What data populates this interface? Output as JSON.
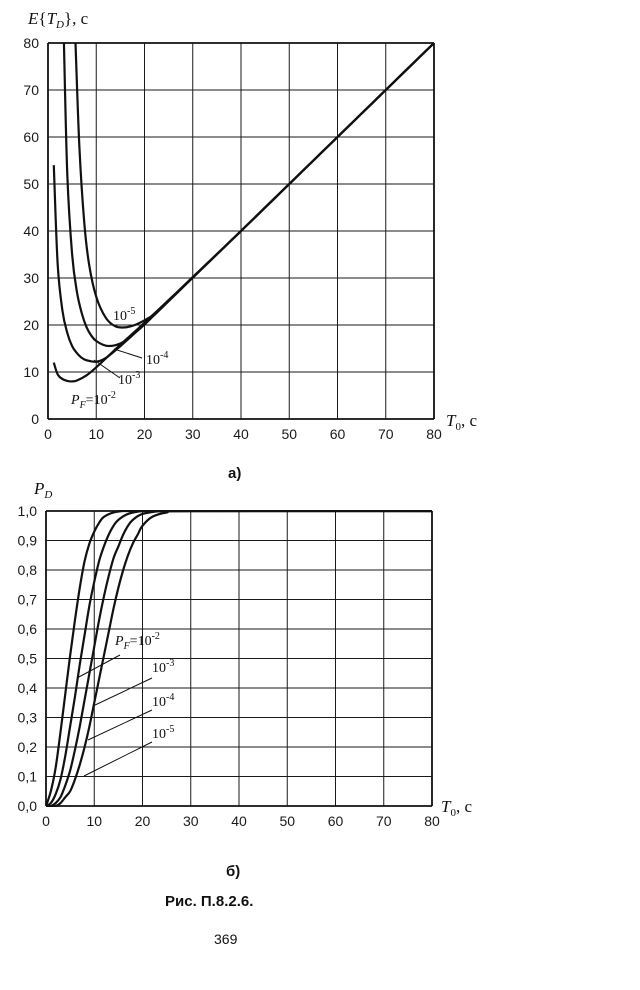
{
  "chart_data": [
    {
      "type": "line",
      "panel": "a)",
      "ylabel": "E{T_D}, с",
      "xlabel": "T_0, с",
      "xlim": [
        0,
        80
      ],
      "ylim": [
        0,
        80
      ],
      "x_ticks": [
        "0",
        "10",
        "20",
        "30",
        "40",
        "50",
        "60",
        "70",
        "80"
      ],
      "y_ticks": [
        "0",
        "10",
        "20",
        "30",
        "40",
        "50",
        "60",
        "70",
        "80"
      ],
      "grid": true,
      "series": [
        {
          "name": "P_F=10^-2",
          "x": [
            1.2,
            2,
            3,
            4,
            5,
            6,
            8,
            10,
            12,
            15,
            18,
            20,
            25,
            30,
            40,
            50,
            60,
            70,
            80
          ],
          "y": [
            12,
            9.5,
            8.5,
            8.1,
            8.0,
            8.2,
            9.3,
            11.0,
            12.9,
            15.8,
            18.6,
            20.5,
            25.3,
            30.2,
            40,
            50,
            60,
            70,
            80
          ]
        },
        {
          "name": "10^-3",
          "x": [
            1.2,
            2,
            3,
            4,
            5,
            6,
            7,
            8,
            10,
            12,
            15,
            18,
            20,
            22,
            25,
            30,
            40,
            50,
            60,
            70,
            80
          ],
          "y": [
            54,
            33,
            23,
            18.3,
            15.5,
            14.0,
            13.0,
            12.5,
            12.2,
            13.0,
            15.5,
            18.3,
            20.2,
            22.1,
            25.1,
            30.1,
            40,
            50,
            60,
            70,
            80
          ]
        },
        {
          "name": "10^-4",
          "x": [
            3.3,
            4,
            5,
            6,
            7,
            8,
            9,
            10,
            12,
            14,
            16,
            18,
            20,
            22,
            25,
            30,
            40,
            50,
            60,
            70,
            80
          ],
          "y": [
            80,
            52,
            35,
            27,
            22.5,
            19.5,
            17.7,
            16.6,
            15.6,
            15.7,
            16.6,
            18.3,
            20.1,
            22.1,
            25.1,
            30.1,
            40,
            50,
            60,
            70,
            80
          ]
        },
        {
          "name": "10^-5",
          "x": [
            5.7,
            6.5,
            7.5,
            8.5,
            10,
            12,
            14,
            16,
            18,
            20,
            22,
            25,
            30,
            40,
            50,
            60,
            70,
            80
          ],
          "y": [
            80,
            58,
            42,
            33,
            26,
            21.5,
            19.7,
            19.5,
            20.0,
            21.0,
            22.3,
            25.1,
            30.1,
            40,
            50,
            60,
            70,
            80
          ]
        }
      ],
      "labels": {
        "p1": "P",
        "p1_sub": "F",
        "p1_rest": "=10",
        "p1_exp": "-2",
        "p2": "10",
        "p2_exp": "-3",
        "p3": "10",
        "p3_exp": "-4",
        "p4": "10",
        "p4_exp": "-5"
      },
      "panel_label": "а)"
    },
    {
      "type": "line",
      "panel": "б)",
      "ylabel": "P_D",
      "xlabel": "T_0, с",
      "xlim": [
        0,
        80
      ],
      "ylim": [
        0,
        1
      ],
      "x_ticks": [
        "0",
        "10",
        "20",
        "30",
        "40",
        "50",
        "60",
        "70",
        "80"
      ],
      "y_ticks": [
        "0,0",
        "0,1",
        "0,2",
        "0,3",
        "0,4",
        "0,5",
        "0,6",
        "0,7",
        "0,8",
        "0,9",
        "1,0"
      ],
      "grid": true,
      "series": [
        {
          "name": "P_F=10^-2",
          "x": [
            0,
            1,
            2,
            3,
            4,
            5,
            6,
            7,
            8,
            9,
            10,
            11,
            12,
            14,
            16,
            18,
            20,
            80
          ],
          "y": [
            0,
            0.05,
            0.13,
            0.25,
            0.38,
            0.51,
            0.63,
            0.74,
            0.83,
            0.89,
            0.93,
            0.96,
            0.98,
            0.995,
            1,
            1,
            1,
            1
          ]
        },
        {
          "name": "10^-3",
          "x": [
            0,
            1,
            2,
            3,
            4,
            5,
            6,
            7,
            8,
            9,
            10,
            11,
            12,
            13,
            14,
            15,
            17,
            20,
            24,
            80
          ],
          "y": [
            0,
            0.01,
            0.04,
            0.09,
            0.17,
            0.27,
            0.37,
            0.48,
            0.58,
            0.68,
            0.76,
            0.83,
            0.88,
            0.92,
            0.95,
            0.97,
            0.99,
            1,
            1,
            1
          ]
        },
        {
          "name": "10^-4",
          "x": [
            0,
            1,
            2,
            3,
            4,
            5,
            6,
            7,
            8,
            9,
            10,
            11,
            12,
            13,
            14,
            15,
            16,
            17,
            18,
            20,
            24,
            28,
            80
          ],
          "y": [
            0,
            0,
            0.01,
            0.03,
            0.07,
            0.12,
            0.19,
            0.27,
            0.36,
            0.45,
            0.54,
            0.63,
            0.71,
            0.78,
            0.84,
            0.88,
            0.92,
            0.95,
            0.97,
            0.99,
            1,
            1,
            1
          ]
        },
        {
          "name": "10^-5",
          "x": [
            0,
            2,
            3,
            4,
            5,
            6,
            7,
            8,
            9,
            10,
            11,
            12,
            13,
            14,
            15,
            16,
            17,
            18,
            19,
            20,
            22,
            25,
            30,
            80
          ],
          "y": [
            0,
            0,
            0.01,
            0.03,
            0.05,
            0.09,
            0.14,
            0.2,
            0.27,
            0.35,
            0.43,
            0.51,
            0.59,
            0.67,
            0.74,
            0.8,
            0.85,
            0.89,
            0.92,
            0.95,
            0.98,
            0.995,
            1,
            1
          ]
        }
      ],
      "labels": {
        "p1": "P",
        "p1_sub": "F",
        "p1_rest": "=10",
        "p1_exp": "-2",
        "p2": "10",
        "p2_exp": "-3",
        "p3": "10",
        "p3_exp": "-4",
        "p4": "10",
        "p4_exp": "-5"
      },
      "panel_label": "б)"
    }
  ],
  "caption": "Рис. П.8.2.6.",
  "page_number": "369",
  "colors": {
    "line": "#111111",
    "grid": "#1a1a1a",
    "frame": "#111111"
  }
}
